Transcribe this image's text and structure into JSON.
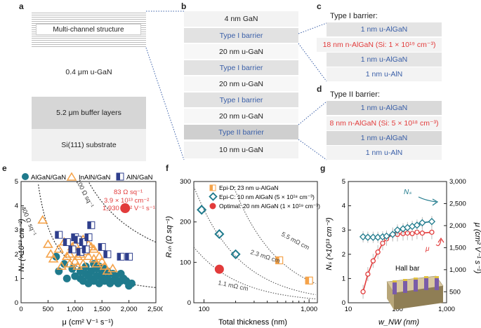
{
  "panels": {
    "a": "a",
    "b": "b",
    "c": "c",
    "d": "d",
    "e": "e",
    "f": "f",
    "g": "g"
  },
  "panel_a": {
    "layers": [
      "Multi-channel structure",
      "0.4 μm u-GaN",
      "5.2 μm buffer layers",
      "Si(111) substrate"
    ]
  },
  "panel_b": {
    "layers": [
      "4 nm GaN",
      "Type I barrier",
      "20 nm u-GaN",
      "Type I barrier",
      "20 nm u-GaN",
      "Type I barrier",
      "20 nm u-GaN",
      "Type II barrier",
      "10 nm u-GaN"
    ]
  },
  "panel_c": {
    "title": "Type I barrier:",
    "layers": [
      "1 nm u-AlGaN",
      "18 nm n-AlGaN (Si: 1 × 10¹⁹ cm⁻³)",
      "1 nm u-AlGaN",
      "1 nm u-AlN"
    ]
  },
  "panel_d": {
    "title": "Type II barrier:",
    "layers": [
      "1 nm u-AlGaN",
      "8 nm n-AlGaN (Si: 5 × 10¹⁸ cm⁻³)",
      "1 nm u-AlGaN",
      "1 nm u-AlN"
    ]
  },
  "colors": {
    "teal": "#1f7a8c",
    "orange": "#f5a34a",
    "navy": "#2e3e8c",
    "red": "#e23b3b",
    "blue_text": "#3a5fa8"
  },
  "chart_data": [
    {
      "id": "e",
      "type": "scatter",
      "xlabel": "μ (cm² V⁻¹ s⁻¹)",
      "ylabel": "Nₛ (×10¹³ cm⁻²)",
      "xlim": [
        0,
        2500
      ],
      "ylim": [
        0,
        5
      ],
      "xticks": [
        "0",
        "500",
        "1,000",
        "1,500",
        "2,000",
        "2,500"
      ],
      "yticks": [
        "0",
        "1",
        "2",
        "3",
        "4",
        "5"
      ],
      "legend": [
        "AlGaN/GaN",
        "InAlN/GaN",
        "AlN/GaN"
      ],
      "series": [
        {
          "name": "AlGaN/GaN",
          "points": [
            [
              700,
              1.3
            ],
            [
              850,
              1.0
            ],
            [
              1000,
              1.1
            ],
            [
              1100,
              1.0
            ],
            [
              1150,
              0.9
            ],
            [
              1200,
              1.2
            ],
            [
              1250,
              0.8
            ],
            [
              1300,
              1.0
            ],
            [
              1350,
              0.9
            ],
            [
              1400,
              1.1
            ],
            [
              1450,
              0.8
            ],
            [
              1500,
              1.0
            ],
            [
              1550,
              0.9
            ],
            [
              1600,
              1.0
            ],
            [
              1650,
              0.8
            ],
            [
              1700,
              0.9
            ],
            [
              1750,
              1.0
            ],
            [
              1800,
              0.8
            ],
            [
              1850,
              0.9
            ],
            [
              1900,
              1.0
            ],
            [
              1950,
              0.9
            ],
            [
              2000,
              0.7
            ],
            [
              2050,
              0.8
            ],
            [
              1300,
              1.3
            ],
            [
              1400,
              1.4
            ],
            [
              1200,
              1.5
            ],
            [
              1500,
              1.2
            ],
            [
              1600,
              1.3
            ],
            [
              1700,
              1.2
            ],
            [
              1100,
              1.3
            ],
            [
              950,
              1.4
            ],
            [
              800,
              1.6
            ],
            [
              650,
              1.9
            ],
            [
              1350,
              1.6
            ],
            [
              1450,
              1.5
            ],
            [
              1550,
              1.4
            ],
            [
              1250,
              1.1
            ],
            [
              1750,
              1.1
            ],
            [
              1850,
              1.2
            ]
          ]
        },
        {
          "name": "InAlN/GaN",
          "points": [
            [
              400,
              3.4
            ],
            [
              500,
              2.4
            ],
            [
              550,
              2.0
            ],
            [
              600,
              1.8
            ],
            [
              700,
              2.2
            ],
            [
              750,
              1.5
            ],
            [
              800,
              2.5
            ],
            [
              850,
              1.9
            ],
            [
              900,
              2.0
            ],
            [
              950,
              2.3
            ],
            [
              1000,
              1.7
            ],
            [
              1050,
              1.5
            ],
            [
              1100,
              2.0
            ],
            [
              1150,
              1.6
            ],
            [
              1200,
              2.1
            ],
            [
              1250,
              1.9
            ],
            [
              1300,
              2.3
            ],
            [
              1350,
              1.8
            ],
            [
              1400,
              1.6
            ],
            [
              1500,
              1.7
            ],
            [
              1550,
              1.5
            ],
            [
              1600,
              1.3
            ],
            [
              1700,
              1.4
            ],
            [
              1000,
              2.4
            ],
            [
              1150,
              2.6
            ],
            [
              1250,
              2.4
            ],
            [
              1350,
              2.2
            ],
            [
              900,
              1.6
            ],
            [
              1050,
              1.9
            ],
            [
              1450,
              1.9
            ]
          ]
        },
        {
          "name": "AlN/GaN",
          "points": [
            [
              700,
              2.8
            ],
            [
              850,
              2.5
            ],
            [
              950,
              2.2
            ],
            [
              1000,
              2.7
            ],
            [
              1050,
              2.6
            ],
            [
              1100,
              2.1
            ],
            [
              1150,
              2.5
            ],
            [
              1200,
              2.2
            ],
            [
              1250,
              2.7
            ],
            [
              1300,
              3.2
            ],
            [
              1500,
              2.3
            ],
            [
              1600,
              2.0
            ],
            [
              1850,
              1.9
            ],
            [
              2000,
              1.9
            ]
          ]
        },
        {
          "name": "This work",
          "points": [
            [
              1930,
              3.9
            ]
          ]
        }
      ],
      "curves": [
        "400 Ω sq⁻¹",
        "100 Ω sq⁻¹"
      ],
      "annotation": [
        "83 Ω sq⁻¹",
        "3.9 × 10¹³ cm⁻²",
        "1,930 cm² V⁻¹ s⁻¹"
      ]
    },
    {
      "id": "f",
      "type": "scatter",
      "xlabel": "Total thickness (nm)",
      "ylabel": "Rₛₕ (Ω sq⁻¹)",
      "xscale": "log",
      "xlim": [
        80,
        1200
      ],
      "ylim": [
        0,
        300
      ],
      "xticks": [
        "100",
        "1,000"
      ],
      "yticks": [
        "0",
        "100",
        "200",
        "300"
      ],
      "legend": [
        "Epi-D: 23 nm u-AlGaN",
        "Epi-C: 10 nm AlGaN (5 × 10¹⁸ cm⁻³)",
        "Optimal: 20 nm AlGaN (1 × 10¹⁹ cm⁻³)"
      ],
      "series": [
        {
          "name": "Epi-D",
          "points": [
            [
              520,
              105
            ],
            [
              1000,
              55
            ]
          ]
        },
        {
          "name": "Epi-C",
          "points": [
            [
              95,
              230
            ],
            [
              140,
              170
            ],
            [
              200,
              120
            ]
          ]
        },
        {
          "name": "Optimal",
          "points": [
            [
              140,
              83
            ]
          ]
        }
      ],
      "curves": [
        "5.5 mΩ cm",
        "2.3 mΩ cm",
        "1.1 mΩ cm"
      ]
    },
    {
      "id": "g",
      "type": "line",
      "xlabel": "w_NW (nm)",
      "ylabel": "Nₛ (×10¹³ cm⁻²)",
      "ylabel2": "μ (cm² V⁻¹ s⁻¹)",
      "xscale": "log",
      "xlim": [
        10,
        1000
      ],
      "ylim": [
        0,
        5
      ],
      "y2lim": [
        250,
        3000
      ],
      "xticks": [
        "10",
        "100",
        "1,000"
      ],
      "yticks": [
        "0",
        "1",
        "2",
        "3",
        "4",
        "5"
      ],
      "y2ticks": [
        "500",
        "1,000",
        "1,500",
        "2,000",
        "2,500",
        "3,000"
      ],
      "series": [
        {
          "name": "Nₛ",
          "x": [
            20,
            25,
            32,
            40,
            50,
            60,
            80,
            100,
            130,
            160,
            200,
            250,
            320,
            500
          ],
          "values": [
            2.72,
            2.7,
            2.7,
            2.7,
            2.72,
            2.75,
            2.82,
            3.0,
            3.05,
            3.1,
            3.15,
            3.2,
            3.3,
            3.35
          ]
        },
        {
          "name": "μ",
          "x": [
            20,
            25,
            32,
            40,
            50,
            60,
            80,
            100,
            130,
            160,
            200,
            250,
            320,
            500
          ],
          "values": [
            500,
            900,
            1200,
            1400,
            1600,
            1700,
            1800,
            1800,
            1820,
            1830,
            1820,
            1850,
            1830,
            1850
          ]
        }
      ],
      "labels": {
        "ns": "Nₛ",
        "mu": "μ",
        "hall": "Hall bar"
      }
    }
  ]
}
